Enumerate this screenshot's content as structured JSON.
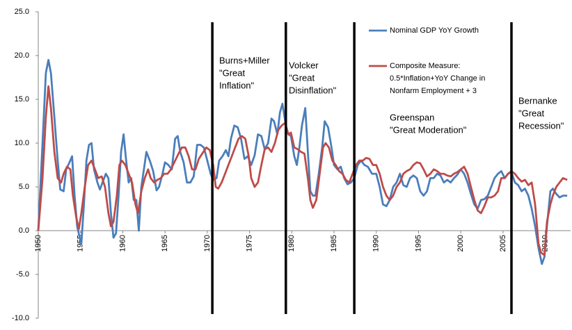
{
  "chart_data": {
    "type": "line",
    "xlim": [
      1950,
      2013
    ],
    "xticks": [
      1950,
      1955,
      1960,
      1965,
      1970,
      1975,
      1980,
      1985,
      1990,
      1995,
      2000,
      2005,
      2010
    ],
    "ylim": [
      -10,
      25
    ],
    "yticks": [
      {
        "value": 25,
        "label": "25.0"
      },
      {
        "value": 20,
        "label": "20.0"
      },
      {
        "value": 15,
        "label": "15.0"
      },
      {
        "value": 10,
        "label": "10.0"
      },
      {
        "value": 5,
        "label": "5.0"
      },
      {
        "value": 0,
        "label": "0.0"
      },
      {
        "value": -5,
        "label": "-5.0"
      },
      {
        "value": -10,
        "label": "-10.0"
      }
    ],
    "grid": false,
    "legend_position": "upper right",
    "era_lines": [
      1970.6,
      1979.3,
      1987.4,
      2006.0
    ],
    "annotations": [
      [
        "Burns+Miller",
        "\"Great",
        "Inflation\""
      ],
      [
        "Volcker",
        "\"Great",
        "Disinflation\""
      ],
      [
        "Greenspan",
        "\"Great Moderation\""
      ],
      [
        "Bernanke",
        "\"Great",
        "Recession\""
      ]
    ],
    "series": [
      {
        "name": "Nominal GDP YoY Growth",
        "color": "#4a7ebb",
        "x": [
          1950.0,
          1950.5,
          1950.9,
          1951.2,
          1951.5,
          1951.9,
          1952.3,
          1952.6,
          1953.0,
          1953.3,
          1953.7,
          1954.0,
          1954.3,
          1954.6,
          1954.9,
          1955.1,
          1955.4,
          1955.7,
          1956.0,
          1956.3,
          1956.6,
          1957.0,
          1957.3,
          1957.6,
          1958.0,
          1958.3,
          1958.6,
          1958.9,
          1959.2,
          1959.5,
          1959.8,
          1960.1,
          1960.4,
          1960.7,
          1961.0,
          1961.3,
          1961.6,
          1961.9,
          1962.2,
          1962.5,
          1962.8,
          1963.2,
          1963.6,
          1964.0,
          1964.3,
          1964.7,
          1965.0,
          1965.4,
          1965.8,
          1966.2,
          1966.5,
          1966.8,
          1967.2,
          1967.6,
          1968.0,
          1968.4,
          1968.8,
          1969.2,
          1969.6,
          1970.0,
          1970.4,
          1970.7,
          1971.1,
          1971.4,
          1971.8,
          1972.2,
          1972.5,
          1972.8,
          1973.2,
          1973.6,
          1974.0,
          1974.4,
          1974.8,
          1975.2,
          1975.6,
          1976.0,
          1976.4,
          1976.8,
          1977.2,
          1977.6,
          1977.9,
          1978.3,
          1978.6,
          1978.9,
          1979.3,
          1979.6,
          1979.9,
          1980.3,
          1980.6,
          1980.9,
          1981.2,
          1981.6,
          1981.9,
          1982.2,
          1982.5,
          1982.8,
          1983.2,
          1983.6,
          1983.9,
          1984.3,
          1984.7,
          1985.0,
          1985.4,
          1985.8,
          1986.2,
          1986.6,
          1987.0,
          1987.4,
          1987.8,
          1988.2,
          1988.6,
          1989.0,
          1989.5,
          1990.0,
          1990.4,
          1990.8,
          1991.2,
          1991.6,
          1992.0,
          1992.4,
          1992.8,
          1993.2,
          1993.6,
          1994.0,
          1994.4,
          1994.8,
          1995.2,
          1995.6,
          1996.0,
          1996.4,
          1996.8,
          1997.2,
          1997.6,
          1998.0,
          1998.4,
          1998.8,
          1999.2,
          1999.6,
          2000.0,
          2000.4,
          2000.8,
          2001.2,
          2001.6,
          2002.0,
          2002.4,
          2002.8,
          2003.2,
          2003.6,
          2004.0,
          2004.4,
          2004.8,
          2005.2,
          2005.6,
          2006.0,
          2006.4,
          2006.8,
          2007.2,
          2007.6,
          2008.0,
          2008.4,
          2008.8,
          2009.2,
          2009.6,
          2009.9,
          2010.2,
          2010.6,
          2010.9,
          2011.3,
          2011.7,
          2012.1,
          2012.6
        ],
        "values": [
          0,
          10,
          18,
          19.5,
          18,
          13,
          8,
          4.7,
          4.5,
          7,
          7.8,
          8.5,
          4,
          0.5,
          -0.8,
          -1.5,
          3,
          8,
          9.8,
          10,
          7,
          5.5,
          4.7,
          5.5,
          6.5,
          6,
          2,
          -0.8,
          -0.3,
          4,
          9,
          11,
          8,
          5.5,
          6,
          3.5,
          3.5,
          0,
          5,
          7,
          9,
          8,
          6.8,
          4.6,
          5,
          6.5,
          7.8,
          7.5,
          7,
          10.5,
          10.8,
          9,
          7.8,
          5.5,
          5.5,
          6.2,
          9.8,
          9.8,
          9.5,
          8,
          6.5,
          5.8,
          6,
          8,
          8.5,
          9.2,
          8.5,
          10.5,
          12,
          11.8,
          10.5,
          8.2,
          8.5,
          7.5,
          8.6,
          11,
          10.8,
          9.3,
          10,
          12.8,
          12.5,
          11,
          13.5,
          14.5,
          12,
          11,
          10.8,
          8.5,
          7.5,
          9.5,
          12,
          14,
          9,
          4.5,
          4,
          4,
          6.5,
          9.5,
          12.5,
          11.8,
          9.5,
          7.5,
          7,
          7.3,
          6,
          5.3,
          5.5,
          6,
          7.5,
          8,
          7.5,
          7.3,
          6.5,
          6.5,
          5,
          3,
          2.8,
          3.5,
          5,
          5.5,
          6.5,
          5.2,
          5,
          6,
          6.3,
          6,
          4.5,
          4,
          4.5,
          6,
          6,
          6.5,
          6.3,
          5.5,
          5.8,
          5.5,
          6,
          6.4,
          7,
          6.5,
          5.5,
          4.2,
          3,
          2.5,
          3.5,
          3.6,
          4,
          5,
          6,
          6.5,
          6.8,
          6,
          6.5,
          6.7,
          5.5,
          5.2,
          4.5,
          4.8,
          4,
          2.5,
          0.5,
          -2,
          -3.8,
          -3,
          0.5,
          4.5,
          4.8,
          4.2,
          3.8,
          4,
          4
        ]
      },
      {
        "name": "Composite Measure:\n0.5*Inflation+YoY Change in\nNonfarm Employment + 3",
        "color": "#be4b48",
        "x": [
          1950.0,
          1950.5,
          1950.9,
          1951.2,
          1951.5,
          1951.9,
          1952.3,
          1952.7,
          1953.0,
          1953.4,
          1953.8,
          1954.1,
          1954.5,
          1954.8,
          1955.1,
          1955.5,
          1955.9,
          1956.3,
          1956.7,
          1957.1,
          1957.5,
          1957.9,
          1958.3,
          1958.6,
          1958.9,
          1959.3,
          1959.6,
          1959.9,
          1960.3,
          1960.7,
          1961.1,
          1961.5,
          1961.8,
          1962.2,
          1962.6,
          1963.0,
          1963.3,
          1963.7,
          1964.1,
          1964.5,
          1964.9,
          1965.3,
          1965.7,
          1966.1,
          1966.6,
          1967.0,
          1967.4,
          1967.8,
          1968.2,
          1968.6,
          1969.0,
          1969.4,
          1969.9,
          1970.3,
          1970.7,
          1971.0,
          1971.3,
          1971.7,
          1972.1,
          1972.5,
          1972.9,
          1973.3,
          1973.7,
          1974.1,
          1974.5,
          1974.9,
          1975.2,
          1975.6,
          1976.0,
          1976.4,
          1976.8,
          1977.2,
          1977.6,
          1978.0,
          1978.4,
          1978.8,
          1979.2,
          1979.6,
          1979.9,
          1980.3,
          1980.7,
          1981.1,
          1981.5,
          1981.9,
          1982.2,
          1982.5,
          1982.9,
          1983.3,
          1983.7,
          1984.0,
          1984.4,
          1984.8,
          1985.2,
          1985.6,
          1986.0,
          1986.4,
          1986.8,
          1987.2,
          1987.6,
          1988.0,
          1988.4,
          1988.8,
          1989.2,
          1989.6,
          1990.0,
          1990.4,
          1990.8,
          1991.2,
          1991.6,
          1992.0,
          1992.4,
          1992.8,
          1993.2,
          1993.6,
          1994.0,
          1994.4,
          1994.8,
          1995.2,
          1995.6,
          1996.0,
          1996.4,
          1996.8,
          1997.2,
          1997.6,
          1998.0,
          1998.4,
          1998.8,
          1999.2,
          1999.6,
          2000.0,
          2000.4,
          2000.8,
          2001.2,
          2001.6,
          2002.0,
          2002.4,
          2002.8,
          2003.2,
          2003.6,
          2004.0,
          2004.4,
          2004.8,
          2005.2,
          2005.6,
          2006.0,
          2006.4,
          2006.8,
          2007.2,
          2007.6,
          2008.0,
          2008.4,
          2008.8,
          2009.2,
          2009.5,
          2009.9,
          2010.2,
          2010.6,
          2010.9,
          2011.3,
          2011.7,
          2012.1,
          2012.6
        ],
        "values": [
          0,
          6,
          13,
          16.5,
          14,
          9,
          6,
          5.5,
          6.5,
          7.3,
          7,
          4,
          1.5,
          0.2,
          2,
          5,
          7.5,
          8,
          7,
          6,
          6.2,
          5,
          2,
          0.5,
          1,
          4,
          7.5,
          8,
          7.5,
          6.5,
          5.5,
          3,
          2,
          4.5,
          6,
          7,
          6,
          5.5,
          5.8,
          6,
          6.5,
          6.5,
          7,
          7.8,
          8.8,
          9.5,
          9.5,
          8.5,
          7,
          7,
          8.2,
          8.8,
          9.5,
          9.2,
          7.5,
          5,
          4.8,
          5.5,
          6.5,
          7.5,
          8.5,
          9.5,
          10.5,
          10.8,
          10.5,
          8.5,
          6,
          5,
          5.5,
          7.5,
          9.3,
          9.5,
          9,
          10,
          11.5,
          12,
          12.3,
          11,
          11.2,
          9.5,
          9.3,
          9,
          8.8,
          6,
          3.5,
          2.6,
          3.5,
          6.5,
          9.5,
          10,
          9.5,
          8,
          7.5,
          6.8,
          6.5,
          5.8,
          5.5,
          6.5,
          7.5,
          8,
          8,
          8.3,
          8.2,
          7.5,
          7.5,
          6.5,
          5,
          4,
          3.5,
          4,
          5,
          5.5,
          6.5,
          6.8,
          7,
          7.5,
          7.8,
          7.7,
          7,
          6.2,
          6.5,
          7,
          6.8,
          6.5,
          6.5,
          6.3,
          6.2,
          6.5,
          6.7,
          7,
          7.3,
          6.5,
          5,
          3.5,
          2.3,
          2,
          2.8,
          3.8,
          3.8,
          4,
          4.5,
          6,
          6,
          6.5,
          6.8,
          6.5,
          6,
          5.6,
          5.8,
          5.2,
          5.5,
          3,
          -1.5,
          -2.5,
          -2.8,
          1,
          3,
          4,
          5,
          5.5,
          6,
          5.8
        ]
      }
    ]
  }
}
